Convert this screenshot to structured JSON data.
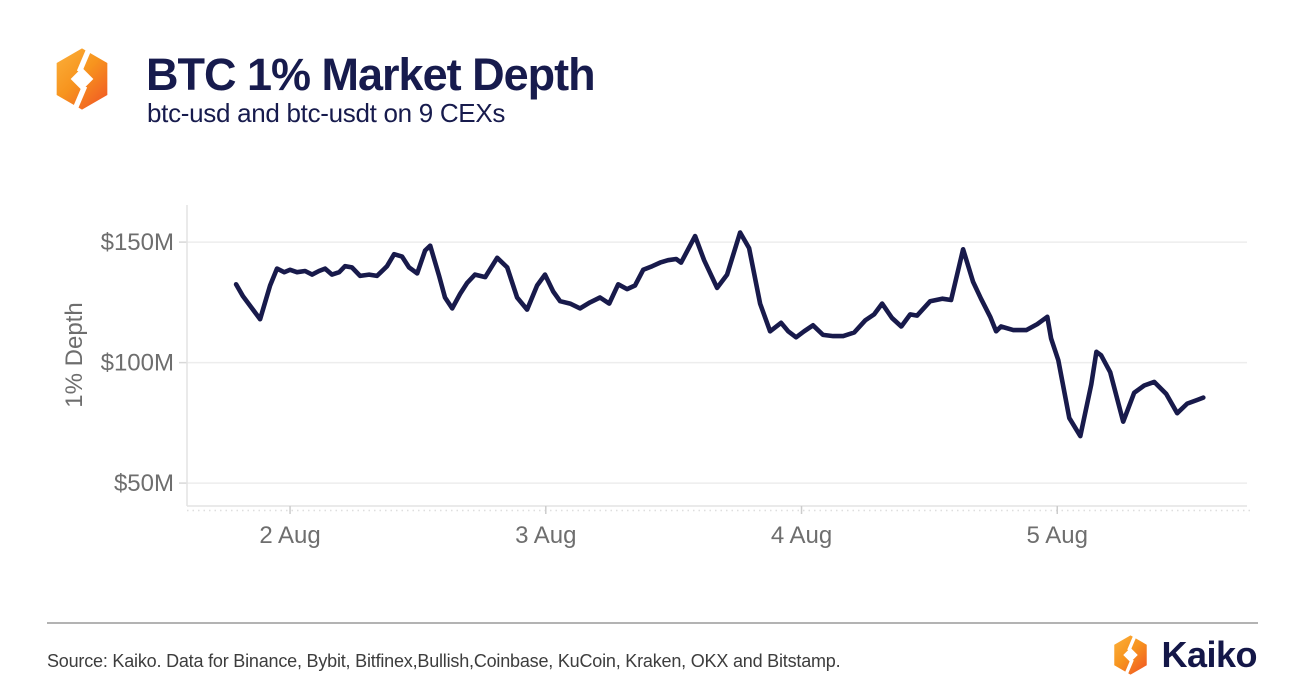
{
  "header": {
    "title": "BTC 1% Market Depth",
    "subtitle": "btc-usd and btc-usdt on 9 CEXs"
  },
  "chart_data": {
    "type": "line",
    "title": "BTC 1% Market Depth",
    "subtitle": "btc-usd and btc-usdt on 9 CEXs",
    "ylabel": "1% Depth",
    "xlabel": "",
    "unit": "USD millions",
    "x_unit": "day of August (decimal, ~hourly points)",
    "xlim": [
      1.597,
      5.742
    ],
    "ylim": [
      40.5,
      165.4
    ],
    "grid": "horizontal",
    "legend": "none",
    "x_ticks": [
      {
        "value": 2,
        "label": "2 Aug"
      },
      {
        "value": 3,
        "label": "3 Aug"
      },
      {
        "value": 4,
        "label": "4 Aug"
      },
      {
        "value": 5,
        "label": "5 Aug"
      }
    ],
    "y_ticks": [
      {
        "value": 150,
        "label": "$150M"
      },
      {
        "value": 100,
        "label": "$100M"
      },
      {
        "value": 50,
        "label": "$50M"
      }
    ],
    "series": [
      {
        "name": "BTC 1% market depth (btc-usd & btc-usdt on 9 CEXs)",
        "color": "#181a4b",
        "points": [
          [
            1.789,
            132.5
          ],
          [
            1.816,
            127.5
          ],
          [
            1.883,
            118
          ],
          [
            1.922,
            132
          ],
          [
            1.949,
            139
          ],
          [
            1.977,
            137.5
          ],
          [
            2.0,
            138.5
          ],
          [
            2.027,
            137.5
          ],
          [
            2.059,
            138
          ],
          [
            2.086,
            136.5
          ],
          [
            2.113,
            138
          ],
          [
            2.137,
            139
          ],
          [
            2.164,
            136.5
          ],
          [
            2.192,
            137.5
          ],
          [
            2.215,
            140
          ],
          [
            2.242,
            139.5
          ],
          [
            2.274,
            136
          ],
          [
            2.309,
            136.5
          ],
          [
            2.34,
            136
          ],
          [
            2.379,
            140
          ],
          [
            2.407,
            145
          ],
          [
            2.438,
            144
          ],
          [
            2.465,
            139.5
          ],
          [
            2.497,
            137
          ],
          [
            2.528,
            146.5
          ],
          [
            2.548,
            148.5
          ],
          [
            2.583,
            136
          ],
          [
            2.606,
            127
          ],
          [
            2.634,
            122.5
          ],
          [
            2.665,
            128.5
          ],
          [
            2.692,
            133
          ],
          [
            2.723,
            136.5
          ],
          [
            2.763,
            135.5
          ],
          [
            2.81,
            143.5
          ],
          [
            2.849,
            139.5
          ],
          [
            2.888,
            127
          ],
          [
            2.927,
            122
          ],
          [
            2.966,
            132
          ],
          [
            2.997,
            136.5
          ],
          [
            3.029,
            129.5
          ],
          [
            3.056,
            125.5
          ],
          [
            3.095,
            124.5
          ],
          [
            3.134,
            122.5
          ],
          [
            3.173,
            125
          ],
          [
            3.212,
            127
          ],
          [
            3.248,
            124.5
          ],
          [
            3.283,
            132.5
          ],
          [
            3.318,
            130.5
          ],
          [
            3.349,
            132
          ],
          [
            3.381,
            138.5
          ],
          [
            3.416,
            140
          ],
          [
            3.447,
            141.5
          ],
          [
            3.478,
            142.5
          ],
          [
            3.51,
            143
          ],
          [
            3.529,
            141.5
          ],
          [
            3.584,
            152.5
          ],
          [
            3.619,
            142.5
          ],
          [
            3.67,
            131
          ],
          [
            3.709,
            136.5
          ],
          [
            3.76,
            154
          ],
          [
            3.795,
            147.5
          ],
          [
            3.838,
            124.5
          ],
          [
            3.877,
            113
          ],
          [
            3.92,
            116.5
          ],
          [
            3.948,
            113
          ],
          [
            3.979,
            110.5
          ],
          [
            4.01,
            113
          ],
          [
            4.045,
            115.5
          ],
          [
            4.084,
            111.5
          ],
          [
            4.124,
            111
          ],
          [
            4.163,
            111
          ],
          [
            4.206,
            112.5
          ],
          [
            4.249,
            117.5
          ],
          [
            4.284,
            120
          ],
          [
            4.315,
            124.5
          ],
          [
            4.354,
            118.5
          ],
          [
            4.39,
            115
          ],
          [
            4.425,
            120
          ],
          [
            4.452,
            119.5
          ],
          [
            4.503,
            125.5
          ],
          [
            4.55,
            126.5
          ],
          [
            4.585,
            126
          ],
          [
            4.632,
            147
          ],
          [
            4.671,
            133.5
          ],
          [
            4.702,
            126.5
          ],
          [
            4.738,
            119
          ],
          [
            4.761,
            113
          ],
          [
            4.78,
            115
          ],
          [
            4.828,
            113.5
          ],
          [
            4.879,
            113.5
          ],
          [
            4.922,
            116
          ],
          [
            4.961,
            119
          ],
          [
            4.976,
            110
          ],
          [
            5.004,
            101
          ],
          [
            5.047,
            77
          ],
          [
            5.09,
            69.5
          ],
          [
            5.133,
            91
          ],
          [
            5.153,
            104.5
          ],
          [
            5.172,
            103
          ],
          [
            5.207,
            96
          ],
          [
            5.258,
            75.5
          ],
          [
            5.301,
            87.5
          ],
          [
            5.34,
            90.5
          ],
          [
            5.379,
            92
          ],
          [
            5.426,
            87
          ],
          [
            5.469,
            79
          ],
          [
            5.508,
            83
          ],
          [
            5.547,
            84.5
          ],
          [
            5.571,
            85.5
          ]
        ]
      }
    ]
  },
  "footer": {
    "source_text": "Source: Kaiko. Data for Binance, Bybit, Bitfinex,Bullish,Coinbase, KuCoin, Kraken, OKX and Bitstamp.",
    "brand_name": "Kaiko"
  },
  "colors": {
    "navy": "#171b4d",
    "line": "#181a4b",
    "axis_text": "#6e6e6e",
    "gridline": "#ededed",
    "axis_line": "#e3e3e3",
    "tick": "#cccccc",
    "dotted_baseline": "#dedede",
    "divider": "#b3b3b3",
    "source_text": "#3d3d3d",
    "logo_orange_light": "#FBB03B",
    "logo_orange_mid": "#F7941E",
    "logo_orange_dark": "#F15A24"
  }
}
